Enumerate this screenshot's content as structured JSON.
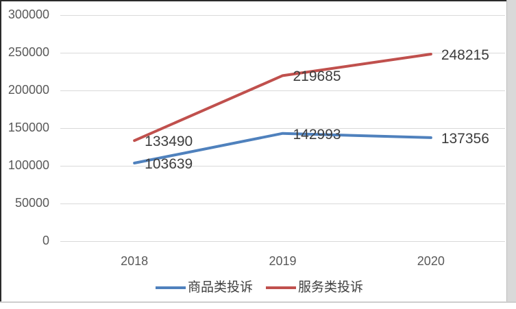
{
  "chart_data": {
    "type": "line",
    "categories": [
      "2018",
      "2019",
      "2020"
    ],
    "series": [
      {
        "name": "商品类投诉",
        "color": "#4F81BD",
        "values": [
          103639,
          142993,
          137356
        ]
      },
      {
        "name": "服务类投诉",
        "color": "#C0504D",
        "values": [
          133490,
          219685,
          248215
        ]
      }
    ],
    "ylim": [
      0,
      300000
    ],
    "yticks": [
      0,
      50000,
      100000,
      150000,
      200000,
      250000,
      300000
    ],
    "ytick_labels": [
      "0",
      "50000",
      "100000",
      "150000",
      "200000",
      "250000",
      "300000"
    ],
    "grid": true,
    "data_labels": true,
    "legend_position": "bottom"
  },
  "colors": {
    "gridline": "#D9D9D9",
    "axis_text": "#595959",
    "data_label_text": "#3D3D3D",
    "frame_dark": "#2B2B2B",
    "frame_light": "#CDCDCD",
    "gutter": "#D9D9D9",
    "series_blue": "#4F81BD",
    "series_red": "#C0504D"
  }
}
